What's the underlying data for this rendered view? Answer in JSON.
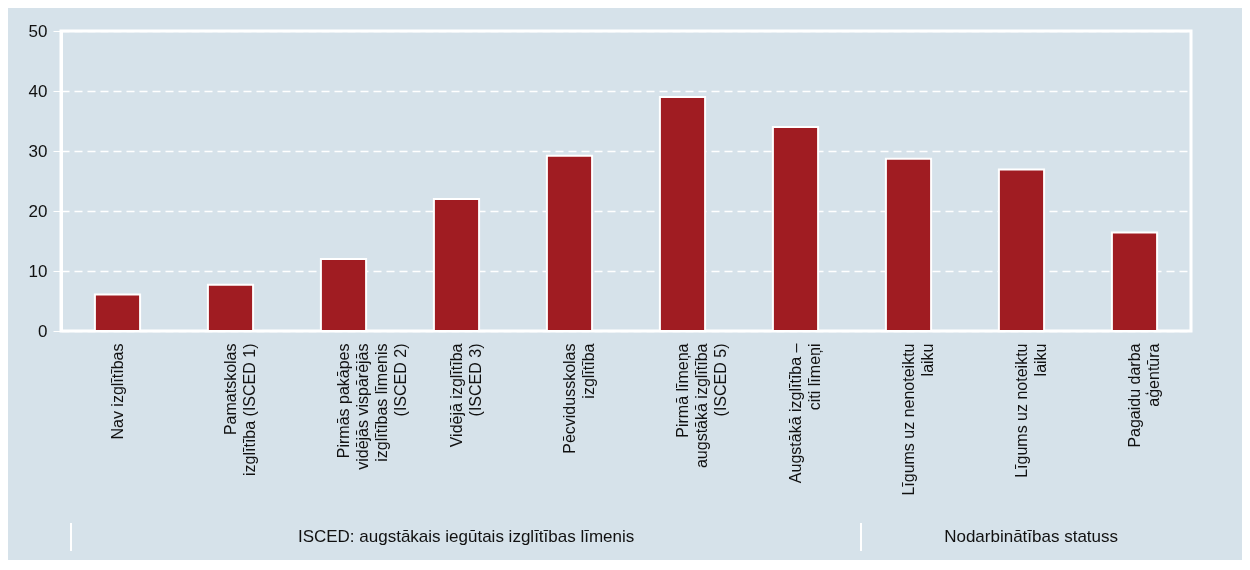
{
  "chart_data": {
    "type": "bar",
    "categories": [
      "Nav izglītības",
      "Pamatskolas izglītība (ISCED 1)",
      "Pirmās pakāpes vidējās vispārējās izglītības līmenis (ISCED 2)",
      "Vidējā izglītība (ISCED 3)",
      "Pēcvidusskolas izglītība",
      "Pirmā līmeņa augstākā izglītība (ISCED 5)",
      "Augstākā izglītība – citi līmeņi",
      "Līgums uz nenoteiktu laiku",
      "Līgums uz noteiktu laiku",
      "Pagaidu darba aģentūra"
    ],
    "values": [
      6.1,
      7.7,
      12.0,
      22.0,
      29.2,
      39.0,
      34.0,
      28.7,
      26.9,
      16.4
    ],
    "color": "#a01c22",
    "ylim": [
      0,
      50
    ],
    "yticks": [
      0,
      10,
      20,
      30,
      40,
      50
    ],
    "grid": "y",
    "annotations": [
      "ISCED: augstākais iegūtais izglītības līmenis",
      "Nodarbinātības statuss"
    ]
  }
}
